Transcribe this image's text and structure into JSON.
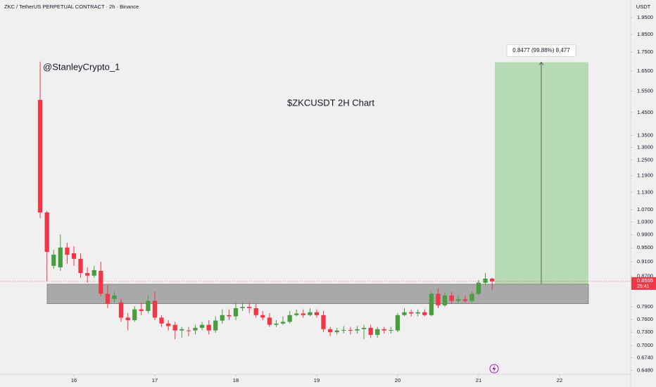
{
  "header": {
    "symbol_title": "ZKC / TetherUS PERPETUAL CONTRACT · 2h · Binance"
  },
  "chart_data": {
    "type": "candlestick",
    "author": "@StanleyCrypto_1",
    "chart_label": "$ZKCUSDT 2H Chart",
    "y_axis_unit": "USDT",
    "x": [
      15.583,
      15.667,
      15.75,
      15.833,
      15.917,
      16,
      16.083,
      16.167,
      16.25,
      16.333,
      16.417,
      16.5,
      16.583,
      16.667,
      16.75,
      16.833,
      16.917,
      17,
      17.083,
      17.167,
      17.25,
      17.333,
      17.417,
      17.5,
      17.583,
      17.667,
      17.75,
      17.833,
      17.917,
      18,
      18.083,
      18.167,
      18.25,
      18.333,
      18.417,
      18.5,
      18.583,
      18.667,
      18.75,
      18.833,
      18.917,
      19,
      19.083,
      19.167,
      19.25,
      19.333,
      19.417,
      19.5,
      19.583,
      19.667,
      19.75,
      19.833,
      19.917,
      20,
      20.083,
      20.167,
      20.25,
      20.333,
      20.417,
      20.5,
      20.583,
      20.667,
      20.75,
      20.833,
      20.917,
      21,
      21.083,
      21.167
    ],
    "open": [
      1.508,
      1.061,
      0.898,
      0.894,
      0.951,
      0.934,
      0.918,
      0.878,
      0.871,
      0.884,
      0.823,
      0.81,
      0.801,
      0.764,
      0.758,
      0.784,
      0.78,
      0.805,
      0.764,
      0.75,
      0.747,
      0.734,
      0.734,
      0.734,
      0.74,
      0.747,
      0.734,
      0.757,
      0.77,
      0.767,
      0.787,
      0.79,
      0.787,
      0.77,
      0.764,
      0.747,
      0.75,
      0.754,
      0.77,
      0.774,
      0.77,
      0.777,
      0.77,
      0.737,
      0.73,
      0.734,
      0.735,
      0.734,
      0.737,
      0.74,
      0.724,
      0.737,
      0.734,
      0.734,
      0.77,
      0.777,
      0.774,
      0.777,
      0.77,
      0.823,
      0.794,
      0.819,
      0.805,
      0.809,
      0.805,
      0.823,
      0.852,
      0.863
    ],
    "high": [
      1.699,
      1.066,
      0.944,
      0.991,
      0.965,
      0.955,
      0.934,
      0.894,
      0.898,
      0.91,
      0.846,
      0.828,
      0.81,
      0.775,
      0.792,
      0.801,
      0.819,
      0.828,
      0.77,
      0.758,
      0.754,
      0.742,
      0.742,
      0.747,
      0.754,
      0.758,
      0.767,
      0.784,
      0.784,
      0.801,
      0.801,
      0.801,
      0.798,
      0.78,
      0.775,
      0.758,
      0.767,
      0.78,
      0.784,
      0.784,
      0.787,
      0.784,
      0.78,
      0.742,
      0.74,
      0.744,
      0.742,
      0.744,
      0.747,
      0.747,
      0.742,
      0.742,
      0.742,
      0.775,
      0.787,
      0.784,
      0.784,
      0.784,
      0.828,
      0.837,
      0.828,
      0.828,
      0.819,
      0.819,
      0.83,
      0.859,
      0.878,
      0.865
    ],
    "low": [
      1.043,
      0.856,
      0.89,
      0.884,
      0.904,
      0.898,
      0.865,
      0.852,
      0.865,
      0.816,
      0.787,
      0.801,
      0.754,
      0.734,
      0.754,
      0.77,
      0.774,
      0.758,
      0.742,
      0.734,
      0.714,
      0.717,
      0.721,
      0.725,
      0.734,
      0.725,
      0.729,
      0.75,
      0.758,
      0.758,
      0.78,
      0.775,
      0.764,
      0.758,
      0.742,
      0.742,
      0.747,
      0.75,
      0.767,
      0.764,
      0.767,
      0.764,
      0.73,
      0.721,
      0.725,
      0.727,
      0.725,
      0.727,
      0.714,
      0.717,
      0.717,
      0.727,
      0.727,
      0.73,
      0.767,
      0.767,
      0.767,
      0.767,
      0.767,
      0.787,
      0.79,
      0.798,
      0.798,
      0.801,
      0.801,
      0.819,
      0.846,
      0.833
    ],
    "close": [
      1.061,
      0.938,
      0.93,
      0.951,
      0.93,
      0.918,
      0.878,
      0.871,
      0.886,
      0.823,
      0.798,
      0.819,
      0.764,
      0.758,
      0.784,
      0.78,
      0.805,
      0.764,
      0.75,
      0.744,
      0.734,
      0.737,
      0.734,
      0.74,
      0.747,
      0.734,
      0.757,
      0.77,
      0.767,
      0.787,
      0.79,
      0.787,
      0.77,
      0.764,
      0.747,
      0.75,
      0.754,
      0.77,
      0.774,
      0.77,
      0.777,
      0.77,
      0.737,
      0.73,
      0.734,
      0.735,
      0.734,
      0.737,
      0.74,
      0.724,
      0.737,
      0.734,
      0.735,
      0.77,
      0.777,
      0.774,
      0.777,
      0.77,
      0.823,
      0.794,
      0.819,
      0.805,
      0.809,
      0.805,
      0.823,
      0.852,
      0.863,
      0.8555
    ],
    "up_color": "#4a9d3f",
    "down_color": "#f23645",
    "xlim": [
      15.087,
      22.87
    ],
    "xticks": [
      16,
      17,
      18,
      19,
      20,
      21,
      22
    ],
    "ylim": [
      0.64,
      2.06
    ],
    "log_scale": true,
    "grid": false,
    "yticks": [
      {
        "value": 1.95,
        "label": "1.9500"
      },
      {
        "value": 1.85,
        "label": "1.8500"
      },
      {
        "value": 1.75,
        "label": "1.7500"
      },
      {
        "value": 1.65,
        "label": "1.6500"
      },
      {
        "value": 1.55,
        "label": "1.5500"
      },
      {
        "value": 1.45,
        "label": "1.4500"
      },
      {
        "value": 1.35,
        "label": "1.3500"
      },
      {
        "value": 1.3,
        "label": "1.3000"
      },
      {
        "value": 1.25,
        "label": "1.2500"
      },
      {
        "value": 1.19,
        "label": "1.1900"
      },
      {
        "value": 1.13,
        "label": "1.1300"
      },
      {
        "value": 1.07,
        "label": "1.0700"
      },
      {
        "value": 1.03,
        "label": "1.0300"
      },
      {
        "value": 0.99,
        "label": "0.9900"
      },
      {
        "value": 0.95,
        "label": "0.9500"
      },
      {
        "value": 0.91,
        "label": "0.9100"
      },
      {
        "value": 0.87,
        "label": "0.8700"
      },
      {
        "value": 0.79,
        "label": "0.7900"
      },
      {
        "value": 0.76,
        "label": "0.7600"
      },
      {
        "value": 0.73,
        "label": "0.7300"
      },
      {
        "value": 0.7,
        "label": "0.7000"
      },
      {
        "value": 0.674,
        "label": "0.6740"
      },
      {
        "value": 0.648,
        "label": "0.6480"
      }
    ],
    "last_price": 0.8555,
    "last_price_color": "#f23645",
    "countdown": "25:41",
    "support_zone": [
      0.798,
      0.848
    ],
    "target_zone": {
      "entry": 0.8487,
      "target": 1.6964,
      "color": "#b2d9b0"
    },
    "measure_label": "0.8477 (99.88%) 8,477"
  }
}
